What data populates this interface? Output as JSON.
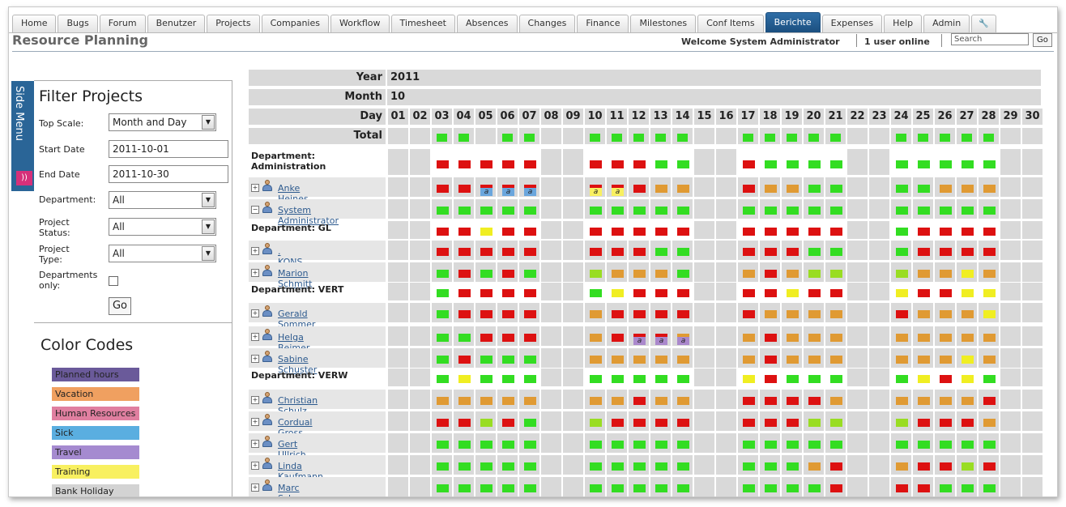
{
  "tabs": [
    "Home",
    "Bugs",
    "Forum",
    "Benutzer",
    "Projects",
    "Companies",
    "Workflow",
    "Timesheet",
    "Absences",
    "Changes",
    "Finance",
    "Milestones",
    "Conf Items",
    "Berichte",
    "Expenses",
    "Help",
    "Admin"
  ],
  "active_tab": "Berichte",
  "tools_icon": "wrench-icon",
  "page_title": "Resource Planning",
  "welcome": "Welcome System Administrator",
  "users_online": "1 user online",
  "search": {
    "placeholder": "Search",
    "button": "Go"
  },
  "side_menu_label": "Side Menu",
  "filter": {
    "title": "Filter Projects",
    "top_scale_label": "Top Scale:",
    "top_scale_value": "Month and Day",
    "start_date_label": "Start Date",
    "start_date": "2011-10-01",
    "end_date_label": "End Date",
    "end_date": "2011-10-30",
    "department_label": "Department:",
    "department_value": "All",
    "project_status_label": "Project Status:",
    "project_status_value": "All",
    "project_type_label": "Project Type:",
    "project_type_value": "All",
    "departments_only_label": "Departments only:",
    "go": "Go"
  },
  "color_codes": {
    "title": "Color Codes",
    "items": [
      {
        "label": "Planned hours",
        "color": "#6a5a9a"
      },
      {
        "label": "Vacation",
        "color": "#f0a060"
      },
      {
        "label": "Human Resources",
        "color": "#e07fa0"
      },
      {
        "label": "Sick",
        "color": "#5aaee0"
      },
      {
        "label": "Travel",
        "color": "#a58ad0"
      },
      {
        "label": "Training",
        "color": "#f8f060"
      },
      {
        "label": "Bank Holiday",
        "color": "#d3d3d3"
      }
    ]
  },
  "grid": {
    "year_label": "Year",
    "year": "2011",
    "month_label": "Month",
    "month": "10",
    "day_label": "Day",
    "days": [
      "01",
      "02",
      "03",
      "04",
      "05",
      "06",
      "07",
      "08",
      "09",
      "10",
      "11",
      "12",
      "13",
      "14",
      "15",
      "16",
      "17",
      "18",
      "19",
      "20",
      "21",
      "22",
      "23",
      "24",
      "25",
      "26",
      "27",
      "28",
      "29",
      "30"
    ],
    "total_label": "Total",
    "total": "..GG.GG..GGGGG..GGGGG..GGGGG..",
    "rows": [
      {
        "type": "dept",
        "label": "Department:\nAdministration",
        "cells": "..RRRRR..RRRGG..RGGGG..GGGGG.."
      },
      {
        "type": "person",
        "label": "Anke Heines",
        "expand": "+",
        "cells": "..RRRRR..RRROO..ROOGG..GGOOO..",
        "abs": {
          "5": "Sa",
          "6": "Sa",
          "7": "Sa",
          "10": "Ta",
          "11": "Ta"
        }
      },
      {
        "type": "person",
        "label": "System Administrator",
        "expand": "-",
        "cells": "..GGGGG..GGGGG..GGGGG..GGGGG.."
      },
      {
        "type": "dept",
        "label": "Department: GL",
        "cells": "..RRYRR..RRRRR..RRRRR..GRRRR.."
      },
      {
        "type": "person",
        "label": ". KONS",
        "expand": "+",
        "cells": "..RRRRR..RRRGG..RRRGG..GRRRR.."
      },
      {
        "type": "person",
        "label": "Marion Schmitt",
        "expand": "+",
        "cells": "..GRGRG..LOOOG..OROLL..LOOYO.."
      },
      {
        "type": "dept",
        "label": "Department: VERT",
        "cells": "..GRRRR..GYRRR..RRYRR..YRRYY.."
      },
      {
        "type": "person",
        "label": "Gerald Sommer",
        "expand": "+",
        "cells": "..GRRRR..ORRRR..ROOOO..ROOOY.."
      },
      {
        "type": "person",
        "label": "Helga Beimer",
        "expand": "+",
        "cells": "..GGRRR..ORRRO..OROOO..OOOOO..",
        "abs": {
          "12": "Ra",
          "13": "Ra",
          "14": "Ra"
        }
      },
      {
        "type": "person",
        "label": "Sabine Schuster",
        "expand": "+",
        "cells": "..GRGGG..OOOOO..OROOO..OOOYO.."
      },
      {
        "type": "dept",
        "label": "Department: VERW",
        "cells": "..GYGGG..GGGGG..YRGGG..GYRYG.."
      },
      {
        "type": "person",
        "label": "Christian Schulz",
        "expand": "+",
        "cells": "..OOOOO..OOROO..RRRRO..OOOOR.."
      },
      {
        "type": "person",
        "label": "Cordual Gross",
        "expand": "+",
        "cells": "..RRLRG..LRRRR..RRRLL..LRRRO.."
      },
      {
        "type": "person",
        "label": "Gert Ullrich",
        "expand": "+",
        "cells": "..GGGGG..GGGGG..GGGGG..GGGGG.."
      },
      {
        "type": "person",
        "label": "Linda Kaufmann",
        "expand": "+",
        "cells": "..GGGGG..GGGGG..GGGOR..ORRLR.."
      },
      {
        "type": "person",
        "label": "Marc Schwarz",
        "expand": "+",
        "cells": "..GGGGG..GGGGG..GGGGR..RRGGG.."
      }
    ]
  },
  "status_colors": {
    "G": "#33dd22",
    "R": "#dd1111",
    "O": "#e09a33",
    "Y": "#f0ee22",
    "L": "#99dd22",
    "Sa": "#6aa6dd",
    "Ta": "#f8f060",
    "Ra": "#aa88cc"
  },
  "absence_letter": "a"
}
